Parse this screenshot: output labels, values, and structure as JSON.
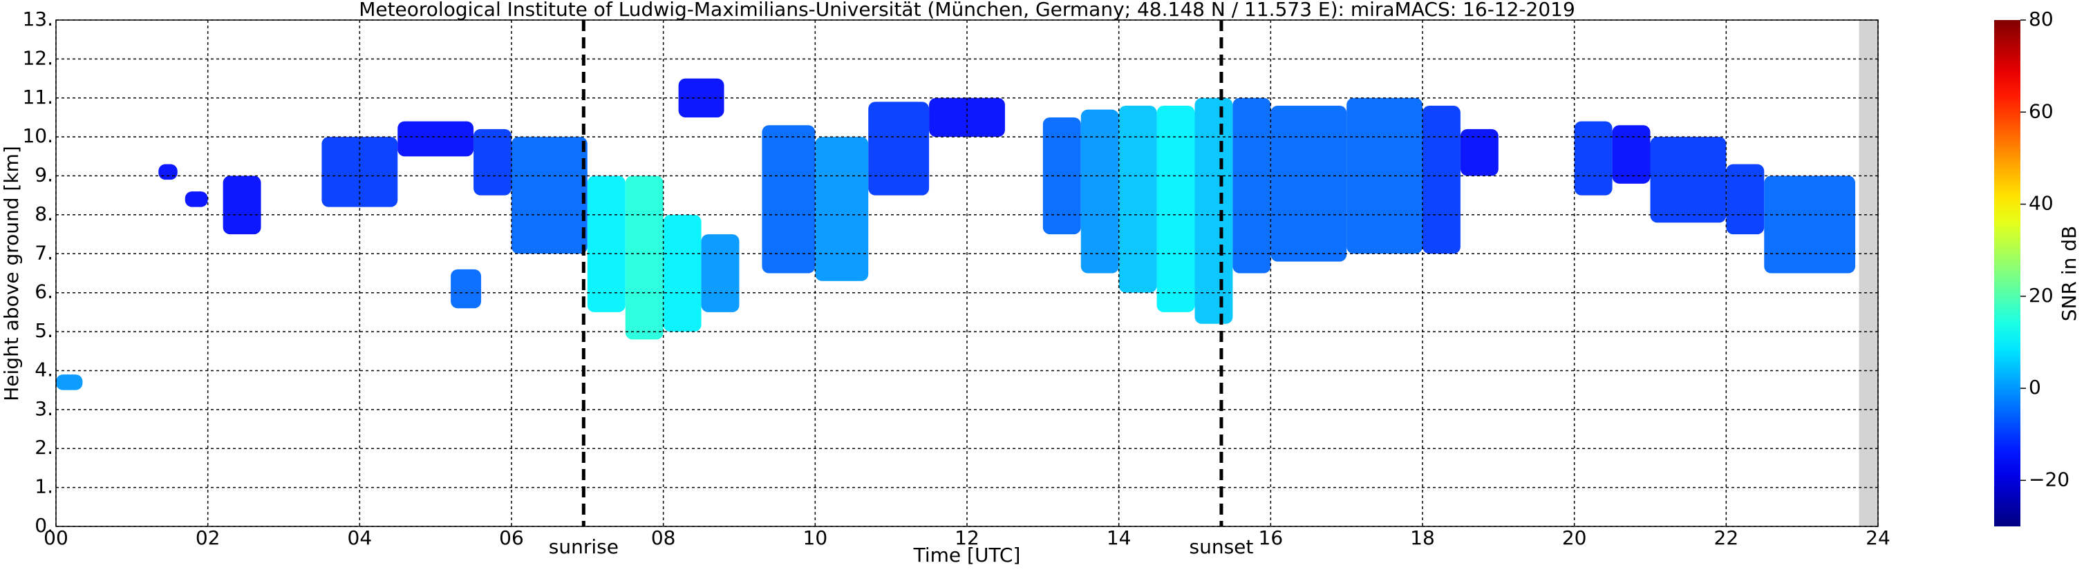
{
  "chart_data": {
    "type": "heatmap",
    "title": "Meteorological Institute of Ludwig-Maximilians-Universität (München, Germany; 48.148 N / 11.573 E):    miraMACS: 16-12-2019",
    "x_label": "Time [UTC]",
    "y_label": "Height above ground [km]",
    "colorbar_label": "SNR in dB",
    "colormap": "jet",
    "xlim": [
      0,
      24
    ],
    "ylim": [
      0,
      13
    ],
    "clim": [
      -30,
      80
    ],
    "grid": true,
    "xticks": [
      {
        "value": 0,
        "label": "00"
      },
      {
        "value": 2,
        "label": "02"
      },
      {
        "value": 4,
        "label": "04"
      },
      {
        "value": 6,
        "label": "06"
      },
      {
        "value": 8,
        "label": "08"
      },
      {
        "value": 10,
        "label": "10"
      },
      {
        "value": 12,
        "label": "12"
      },
      {
        "value": 14,
        "label": "14"
      },
      {
        "value": 16,
        "label": "16"
      },
      {
        "value": 18,
        "label": "18"
      },
      {
        "value": 20,
        "label": "20"
      },
      {
        "value": 22,
        "label": "22"
      },
      {
        "value": 24,
        "label": "24"
      }
    ],
    "yticks": [
      {
        "value": 0,
        "label": "0."
      },
      {
        "value": 1,
        "label": "1."
      },
      {
        "value": 2,
        "label": "2."
      },
      {
        "value": 3,
        "label": "3."
      },
      {
        "value": 4,
        "label": "4."
      },
      {
        "value": 5,
        "label": "5."
      },
      {
        "value": 6,
        "label": "6."
      },
      {
        "value": 7,
        "label": "7."
      },
      {
        "value": 8,
        "label": "8."
      },
      {
        "value": 9,
        "label": "9."
      },
      {
        "value": 10,
        "label": "10."
      },
      {
        "value": 11,
        "label": "11."
      },
      {
        "value": 12,
        "label": "12."
      },
      {
        "value": 13,
        "label": "13."
      }
    ],
    "cticks": [
      {
        "value": -20,
        "label": "−20"
      },
      0,
      20,
      40,
      60,
      80
    ],
    "markers": [
      {
        "x": 6.95,
        "label": "sunrise"
      },
      {
        "x": 15.35,
        "label": "sunset"
      }
    ],
    "x0": [
      0.0,
      1.35,
      1.7,
      2.2,
      3.5,
      4.5,
      5.5,
      5.2,
      6.0,
      7.0,
      7.5,
      8.0,
      8.5,
      8.2,
      9.3,
      10.0,
      10.7,
      11.5,
      13.0,
      13.5,
      14.0,
      14.5,
      15.0,
      15.5,
      16.0,
      17.0,
      18.0,
      18.5,
      20.0,
      20.5,
      21.0,
      22.0,
      22.5
    ],
    "x1": [
      0.35,
      1.6,
      2.0,
      2.7,
      4.5,
      5.5,
      6.0,
      5.6,
      7.0,
      7.5,
      8.0,
      8.5,
      9.0,
      8.8,
      10.0,
      10.7,
      11.5,
      12.5,
      13.5,
      14.0,
      14.5,
      15.0,
      15.5,
      16.0,
      17.0,
      18.0,
      18.5,
      19.0,
      20.5,
      21.0,
      22.0,
      22.5,
      23.7
    ],
    "y0": [
      3.5,
      8.9,
      8.2,
      7.5,
      8.2,
      9.5,
      8.5,
      5.6,
      7.0,
      5.5,
      4.8,
      5.0,
      5.5,
      10.5,
      6.5,
      6.3,
      8.5,
      10.0,
      7.5,
      6.5,
      6.0,
      5.5,
      5.2,
      6.5,
      6.8,
      7.0,
      7.0,
      9.0,
      8.5,
      8.8,
      7.8,
      7.5,
      6.5
    ],
    "y1": [
      3.9,
      9.3,
      8.6,
      9.0,
      10.0,
      10.4,
      10.2,
      6.6,
      10.0,
      9.0,
      9.0,
      8.0,
      7.5,
      11.5,
      10.3,
      10.0,
      10.9,
      11.0,
      10.5,
      10.7,
      10.8,
      10.8,
      11.0,
      11.0,
      10.8,
      11.0,
      10.8,
      10.2,
      10.4,
      10.3,
      10.0,
      9.3,
      9.0
    ],
    "values": [
      0,
      -15,
      -15,
      -15,
      -10,
      -15,
      -10,
      -5,
      -5,
      10,
      15,
      10,
      0,
      -15,
      -5,
      0,
      -10,
      -15,
      -5,
      0,
      5,
      10,
      5,
      -5,
      -5,
      -5,
      -10,
      -15,
      -10,
      -15,
      -10,
      -10,
      -5
    ]
  }
}
